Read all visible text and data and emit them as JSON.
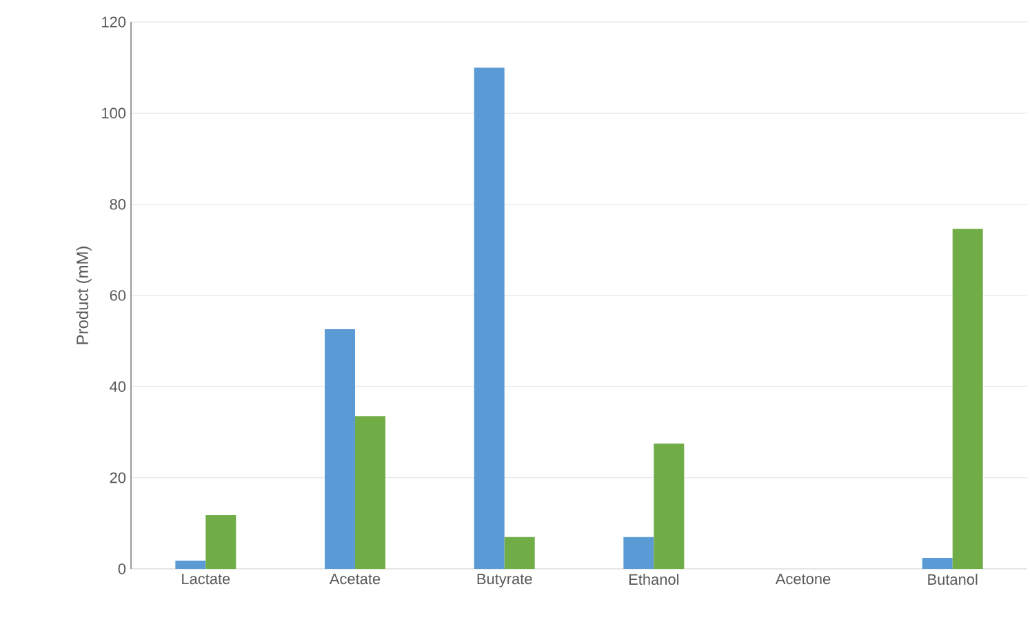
{
  "chart_data": {
    "type": "bar",
    "ylabel": "Product (mM)",
    "categories": [
      "Lactate",
      "Acetate",
      "Butyrate",
      "Ethanol",
      "Acetone",
      "Butanol"
    ],
    "series": [
      {
        "color": "#5b9bd5",
        "values": [
          1.8,
          52.6,
          110,
          7,
          0,
          2.4
        ]
      },
      {
        "color": "#70ad47",
        "values": [
          11.8,
          33.5,
          7,
          27.5,
          0,
          74.6
        ]
      }
    ],
    "ylim": [
      0,
      120
    ],
    "yticks": [
      0,
      20,
      40,
      60,
      80,
      100,
      120
    ],
    "grid": "y"
  }
}
